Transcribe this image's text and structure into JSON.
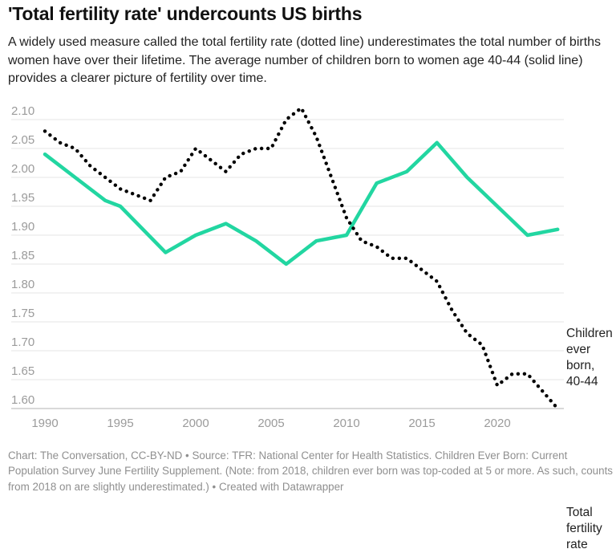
{
  "header": {
    "title": "'Total fertility rate' undercounts US births",
    "description": "A widely used measure called the total fertility rate (dotted line) underestimates the total number of births women have over their lifetime. The average number of children born to women age 40-44 (solid line) provides a clearer picture of fertility over time."
  },
  "chart_data": {
    "type": "line",
    "title": "'Total fertility rate' undercounts US births",
    "xlabel": "",
    "ylabel": "",
    "grid": true,
    "legend_position": "line-end-labels-right",
    "x": {
      "min": 1990,
      "max": 2024,
      "ticks": [
        1990,
        1995,
        2000,
        2005,
        2010,
        2015,
        2020
      ]
    },
    "y": {
      "min": 1.6,
      "max": 2.1,
      "tick_labels": [
        "2.10",
        "2.05",
        "2.00",
        "1.95",
        "1.90",
        "1.85",
        "1.80",
        "1.75",
        "1.70",
        "1.65",
        "1.60"
      ]
    },
    "series": [
      {
        "name": "Total fertility rate",
        "style": "dotted",
        "color": "#000000",
        "label_lines": [
          "Total",
          "fertility",
          "rate"
        ],
        "years": [
          1990,
          1991,
          1992,
          1993,
          1994,
          1995,
          1996,
          1997,
          1998,
          1999,
          2000,
          2001,
          2002,
          2003,
          2004,
          2005,
          2006,
          2007,
          2008,
          2009,
          2010,
          2011,
          2012,
          2013,
          2014,
          2015,
          2016,
          2017,
          2018,
          2019,
          2020,
          2021,
          2022,
          2023,
          2024
        ],
        "values": [
          2.08,
          2.06,
          2.05,
          2.02,
          2.0,
          1.98,
          1.97,
          1.96,
          2.0,
          2.01,
          2.05,
          2.03,
          2.01,
          2.04,
          2.05,
          2.05,
          2.1,
          2.12,
          2.07,
          2.0,
          1.93,
          1.89,
          1.88,
          1.86,
          1.86,
          1.84,
          1.82,
          1.77,
          1.73,
          1.71,
          1.64,
          1.66,
          1.66,
          1.63,
          1.6
        ]
      },
      {
        "name": "Children ever born, 40-44",
        "style": "solid",
        "color": "#22d6a1",
        "label_lines": [
          "Children",
          "ever",
          "born,",
          "40-44"
        ],
        "years": [
          1990,
          1992,
          1994,
          1995,
          1998,
          2000,
          2002,
          2004,
          2006,
          2008,
          2010,
          2012,
          2014,
          2016,
          2018,
          2020,
          2022,
          2024
        ],
        "values": [
          2.04,
          2.0,
          1.96,
          1.95,
          1.87,
          1.9,
          1.92,
          1.89,
          1.85,
          1.89,
          1.9,
          1.99,
          2.01,
          2.06,
          2.0,
          1.95,
          1.9,
          1.91
        ]
      }
    ]
  },
  "footer": {
    "credit": "Chart: The Conversation, CC-BY-ND • Source: TFR: National Center for Health Statistics. Children Ever Born: Current Population Survey June Fertility Supplement. (Note: from 2018, children ever born was top-coded at 5 or more. As such, counts from 2018 on are slightly underestimated.)  • Created with Datawrapper"
  },
  "colors": {
    "accent_teal": "#22d6a1",
    "dotted_line": "#000000",
    "grid": "#e4e4e4",
    "axis_baseline": "#b3b3b3",
    "tick_label": "#9b9b9b",
    "text": "#222222",
    "footer_text": "#8f8f8f"
  }
}
